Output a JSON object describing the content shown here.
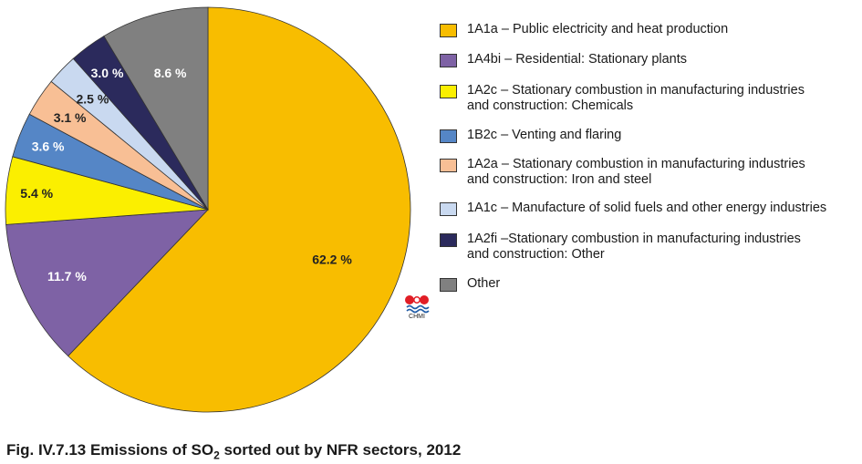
{
  "chart_data": {
    "type": "pie",
    "title": "",
    "slices": [
      {
        "label": "1A1a – Public electricity and heat production",
        "value": 62.2,
        "display": "62.2 %",
        "color": "#f8bd00"
      },
      {
        "label": "1A4bi  – Residential: Stationary plants",
        "value": 11.7,
        "display": "11.7 %",
        "color": "#7e62a5"
      },
      {
        "label": "1A2c – Stationary combustion in manufacturing industries and construction: Chemicals",
        "value": 5.4,
        "display": "5.4 %",
        "color": "#fbef00"
      },
      {
        "label": "1B2c – Venting and flaring",
        "value": 3.6,
        "display": "3.6 %",
        "color": "#5586c6"
      },
      {
        "label": "1A2a – Stationary combustion in manufacturing industries and construction: Iron and steel",
        "value": 3.1,
        "display": "3.1 %",
        "color": "#f8bf95"
      },
      {
        "label": "1A1c – Manufacture of solid fuels and other energy industries",
        "value": 2.5,
        "display": "2.5 %",
        "color": "#c9d9f0"
      },
      {
        "label": "1A2fi –Stationary combustion in manufacturing industries and construction: Other",
        "value": 3.0,
        "display": "3.0 %",
        "color": "#2b2a5c"
      },
      {
        "label": "Other",
        "value": 8.6,
        "display": "8.6 %",
        "color": "#808080"
      }
    ],
    "legend_placement": "right"
  },
  "legend": [
    {
      "lines": [
        "1A1a – Public electricity and heat production"
      ],
      "color": "#f8bd00"
    },
    {
      "lines": [
        "1A4bi  – Residential: Stationary plants"
      ],
      "color": "#7e62a5"
    },
    {
      "lines": [
        "1A2c – Stationary combustion in manufacturing industries",
        "and construction: Chemicals"
      ],
      "color": "#fbef00"
    },
    {
      "lines": [
        "1B2c – Venting and flaring"
      ],
      "color": "#5586c6"
    },
    {
      "lines": [
        "1A2a – Stationary combustion in manufacturing industries",
        "and construction: Iron and steel"
      ],
      "color": "#f8bf95"
    },
    {
      "lines": [
        "1A1c – Manufacture of solid fuels and other energy industries"
      ],
      "color": "#c9d9f0"
    },
    {
      "lines": [
        "1A2fi –Stationary combustion in manufacturing industries",
        "and construction: Other"
      ],
      "color": "#2b2a5c"
    },
    {
      "lines": [
        "Other"
      ],
      "color": "#808080"
    }
  ],
  "logo": {
    "text": "CHMI"
  },
  "caption": {
    "prefix": "Fig. IV.7.13  Emissions of SO",
    "subscript": "2",
    "suffix": " sorted out by NFR sectors, 2012"
  }
}
